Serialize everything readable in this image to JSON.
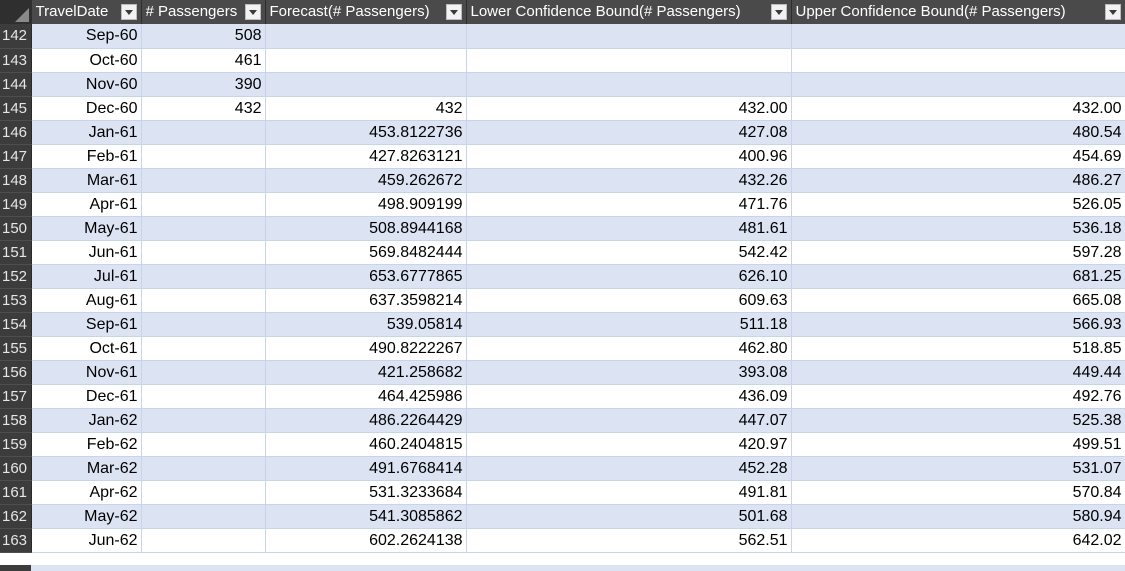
{
  "header": {
    "columns": [
      "TravelDate",
      "# Passengers",
      "Forecast(# Passengers)",
      "Lower Confidence Bound(# Passengers)",
      "Upper Confidence Bound(# Passengers)"
    ]
  },
  "rows": [
    {
      "n": "142",
      "date": "Sep-60",
      "passengers": "508",
      "forecast": "",
      "lower": "",
      "upper": ""
    },
    {
      "n": "143",
      "date": "Oct-60",
      "passengers": "461",
      "forecast": "",
      "lower": "",
      "upper": ""
    },
    {
      "n": "144",
      "date": "Nov-60",
      "passengers": "390",
      "forecast": "",
      "lower": "",
      "upper": ""
    },
    {
      "n": "145",
      "date": "Dec-60",
      "passengers": "432",
      "forecast": "432",
      "lower": "432.00",
      "upper": "432.00"
    },
    {
      "n": "146",
      "date": "Jan-61",
      "passengers": "",
      "forecast": "453.8122736",
      "lower": "427.08",
      "upper": "480.54"
    },
    {
      "n": "147",
      "date": "Feb-61",
      "passengers": "",
      "forecast": "427.8263121",
      "lower": "400.96",
      "upper": "454.69"
    },
    {
      "n": "148",
      "date": "Mar-61",
      "passengers": "",
      "forecast": "459.262672",
      "lower": "432.26",
      "upper": "486.27"
    },
    {
      "n": "149",
      "date": "Apr-61",
      "passengers": "",
      "forecast": "498.909199",
      "lower": "471.76",
      "upper": "526.05"
    },
    {
      "n": "150",
      "date": "May-61",
      "passengers": "",
      "forecast": "508.8944168",
      "lower": "481.61",
      "upper": "536.18"
    },
    {
      "n": "151",
      "date": "Jun-61",
      "passengers": "",
      "forecast": "569.8482444",
      "lower": "542.42",
      "upper": "597.28"
    },
    {
      "n": "152",
      "date": "Jul-61",
      "passengers": "",
      "forecast": "653.6777865",
      "lower": "626.10",
      "upper": "681.25"
    },
    {
      "n": "153",
      "date": "Aug-61",
      "passengers": "",
      "forecast": "637.3598214",
      "lower": "609.63",
      "upper": "665.08"
    },
    {
      "n": "154",
      "date": "Sep-61",
      "passengers": "",
      "forecast": "539.05814",
      "lower": "511.18",
      "upper": "566.93"
    },
    {
      "n": "155",
      "date": "Oct-61",
      "passengers": "",
      "forecast": "490.8222267",
      "lower": "462.80",
      "upper": "518.85"
    },
    {
      "n": "156",
      "date": "Nov-61",
      "passengers": "",
      "forecast": "421.258682",
      "lower": "393.08",
      "upper": "449.44"
    },
    {
      "n": "157",
      "date": "Dec-61",
      "passengers": "",
      "forecast": "464.425986",
      "lower": "436.09",
      "upper": "492.76"
    },
    {
      "n": "158",
      "date": "Jan-62",
      "passengers": "",
      "forecast": "486.2264429",
      "lower": "447.07",
      "upper": "525.38"
    },
    {
      "n": "159",
      "date": "Feb-62",
      "passengers": "",
      "forecast": "460.2404815",
      "lower": "420.97",
      "upper": "499.51"
    },
    {
      "n": "160",
      "date": "Mar-62",
      "passengers": "",
      "forecast": "491.6768414",
      "lower": "452.28",
      "upper": "531.07"
    },
    {
      "n": "161",
      "date": "Apr-62",
      "passengers": "",
      "forecast": "531.3233684",
      "lower": "491.81",
      "upper": "570.84"
    },
    {
      "n": "162",
      "date": "May-62",
      "passengers": "",
      "forecast": "541.3085862",
      "lower": "501.68",
      "upper": "580.94"
    },
    {
      "n": "163",
      "date": "Jun-62",
      "passengers": "",
      "forecast": "602.2624138",
      "lower": "562.51",
      "upper": "642.02"
    }
  ],
  "colors": {
    "header_bg": "#4a4a4a",
    "header_text": "#ffffff",
    "band_row": "#dce3f3",
    "plain_row": "#ffffff",
    "gridline": "#c9d3ea",
    "row_number_bg": "#3c3c3c"
  },
  "icons": {
    "corner": "select-all-triangle-icon",
    "filter": "filter-dropdown-icon"
  }
}
